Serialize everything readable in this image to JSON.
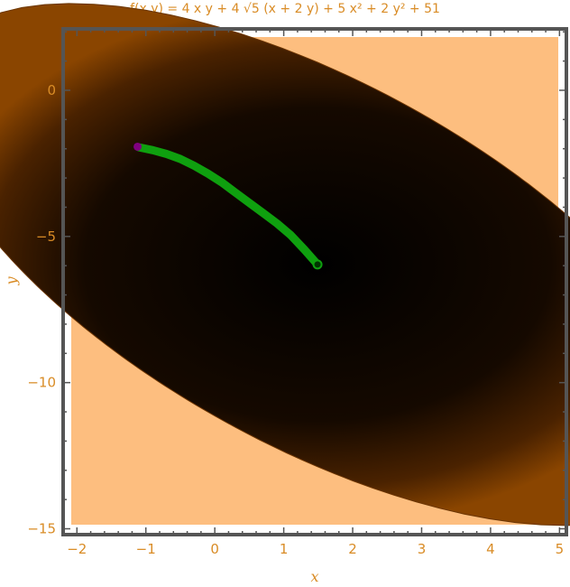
{
  "title": "f(x,y) = 4 x y + 4 √5 (x + 2 y) + 5 x² + 2 y² + 51",
  "chart_data": {
    "type": "contour",
    "title": "f(x,y) = 4 x y + 4 √5 (x + 2 y) + 5 x² + 2 y² + 51",
    "xlabel": "x",
    "ylabel": "y",
    "xlim": [
      -2.2,
      5.1
    ],
    "ylim": [
      -15.2,
      2.1
    ],
    "x_ticks": [
      -2,
      -1,
      0,
      1,
      2,
      3,
      4,
      5
    ],
    "y_ticks": [
      0,
      -5,
      -10,
      -15
    ],
    "x_tick_labels": [
      "−2",
      "−1",
      "0",
      "1",
      "2",
      "3",
      "4",
      "5"
    ],
    "y_tick_labels": [
      "0",
      "−5",
      "−10",
      "−15"
    ],
    "minimum": {
      "x": 1.49,
      "y": -5.96
    },
    "contour_region": {
      "level": 100,
      "color_outside": "#FDBE7F",
      "color_near_min": "#000000",
      "color_edge": "#8A4500"
    },
    "path": {
      "name": "",
      "color": "#0FA00F",
      "points": [
        [
          -1.1,
          -1.95
        ],
        [
          -0.9,
          -2.05
        ],
        [
          -0.7,
          -2.18
        ],
        [
          -0.5,
          -2.35
        ],
        [
          -0.3,
          -2.58
        ],
        [
          -0.1,
          -2.85
        ],
        [
          0.1,
          -3.15
        ],
        [
          0.3,
          -3.5
        ],
        [
          0.5,
          -3.85
        ],
        [
          0.7,
          -4.2
        ],
        [
          0.9,
          -4.55
        ],
        [
          1.1,
          -4.95
        ],
        [
          1.3,
          -5.45
        ],
        [
          1.49,
          -5.96
        ]
      ]
    },
    "start_marker": {
      "x": -1.12,
      "y": -1.93,
      "color": "#800080"
    },
    "end_marker": {
      "x": 1.49,
      "y": -5.96,
      "color": "#0FA00F"
    },
    "frame_color": "#555555",
    "grid": false
  }
}
